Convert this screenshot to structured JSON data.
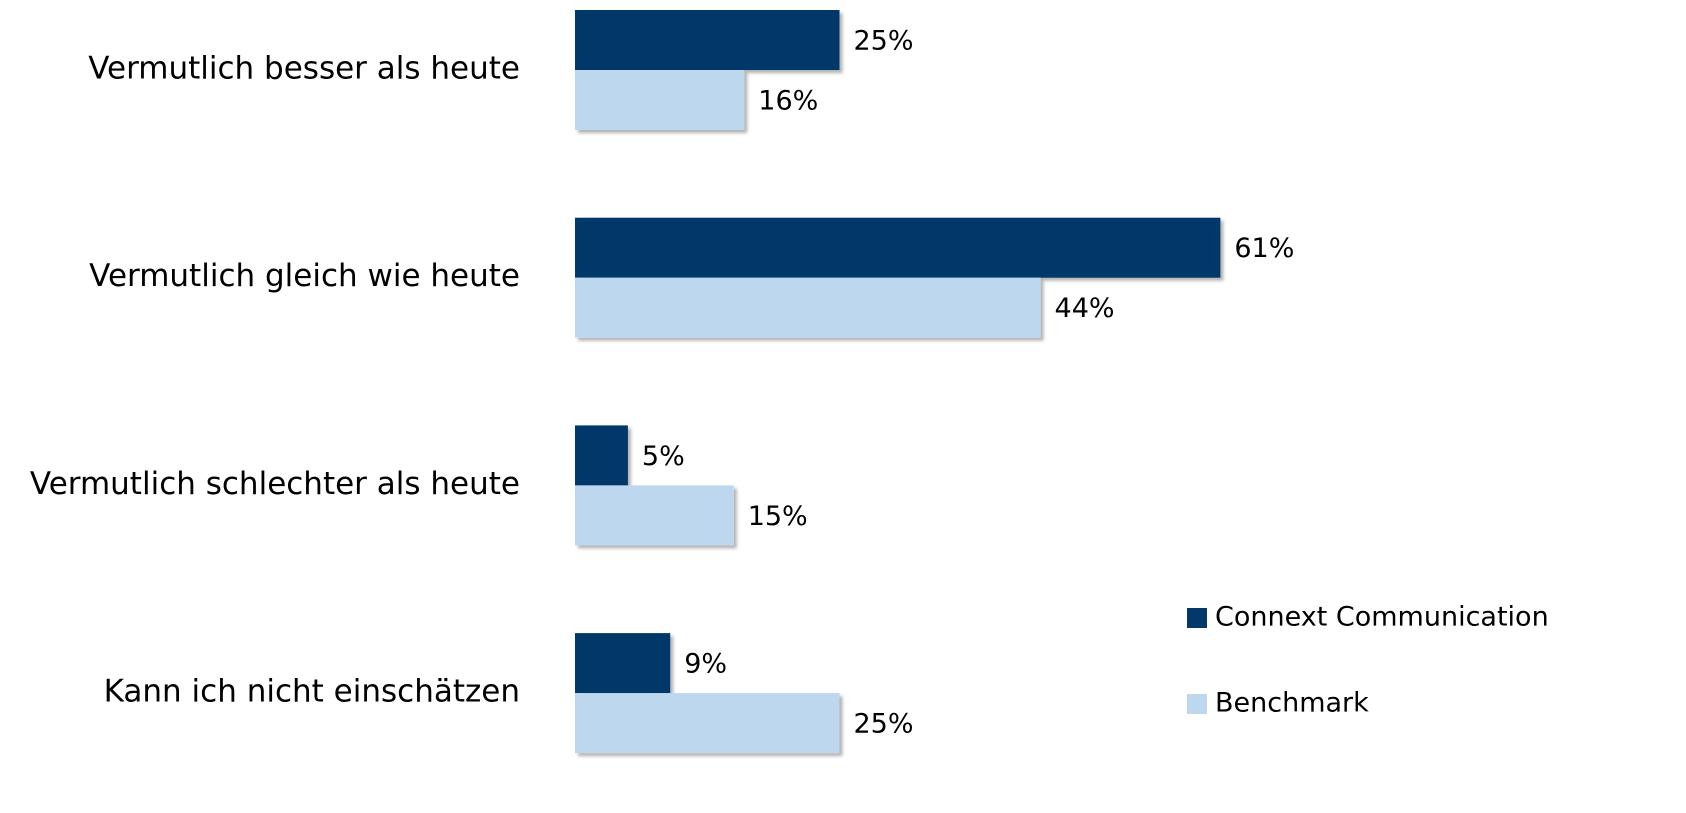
{
  "chart_data": {
    "type": "bar",
    "orientation": "horizontal",
    "categories": [
      "Vermutlich besser als heute",
      "Vermutlich gleich wie heute",
      "Vermutlich schlechter als heute",
      "Kann ich nicht einschätzen"
    ],
    "series": [
      {
        "name": "Connext Communication",
        "color": "#03386a",
        "values": [
          25,
          61,
          5,
          9
        ],
        "value_labels": [
          "25%",
          "61%",
          "5%",
          "9%"
        ]
      },
      {
        "name": "Benchmark",
        "color": "#bdd7ee",
        "values": [
          16,
          44,
          15,
          25
        ],
        "value_labels": [
          "16%",
          "44%",
          "15%",
          "25%"
        ]
      }
    ]
  }
}
